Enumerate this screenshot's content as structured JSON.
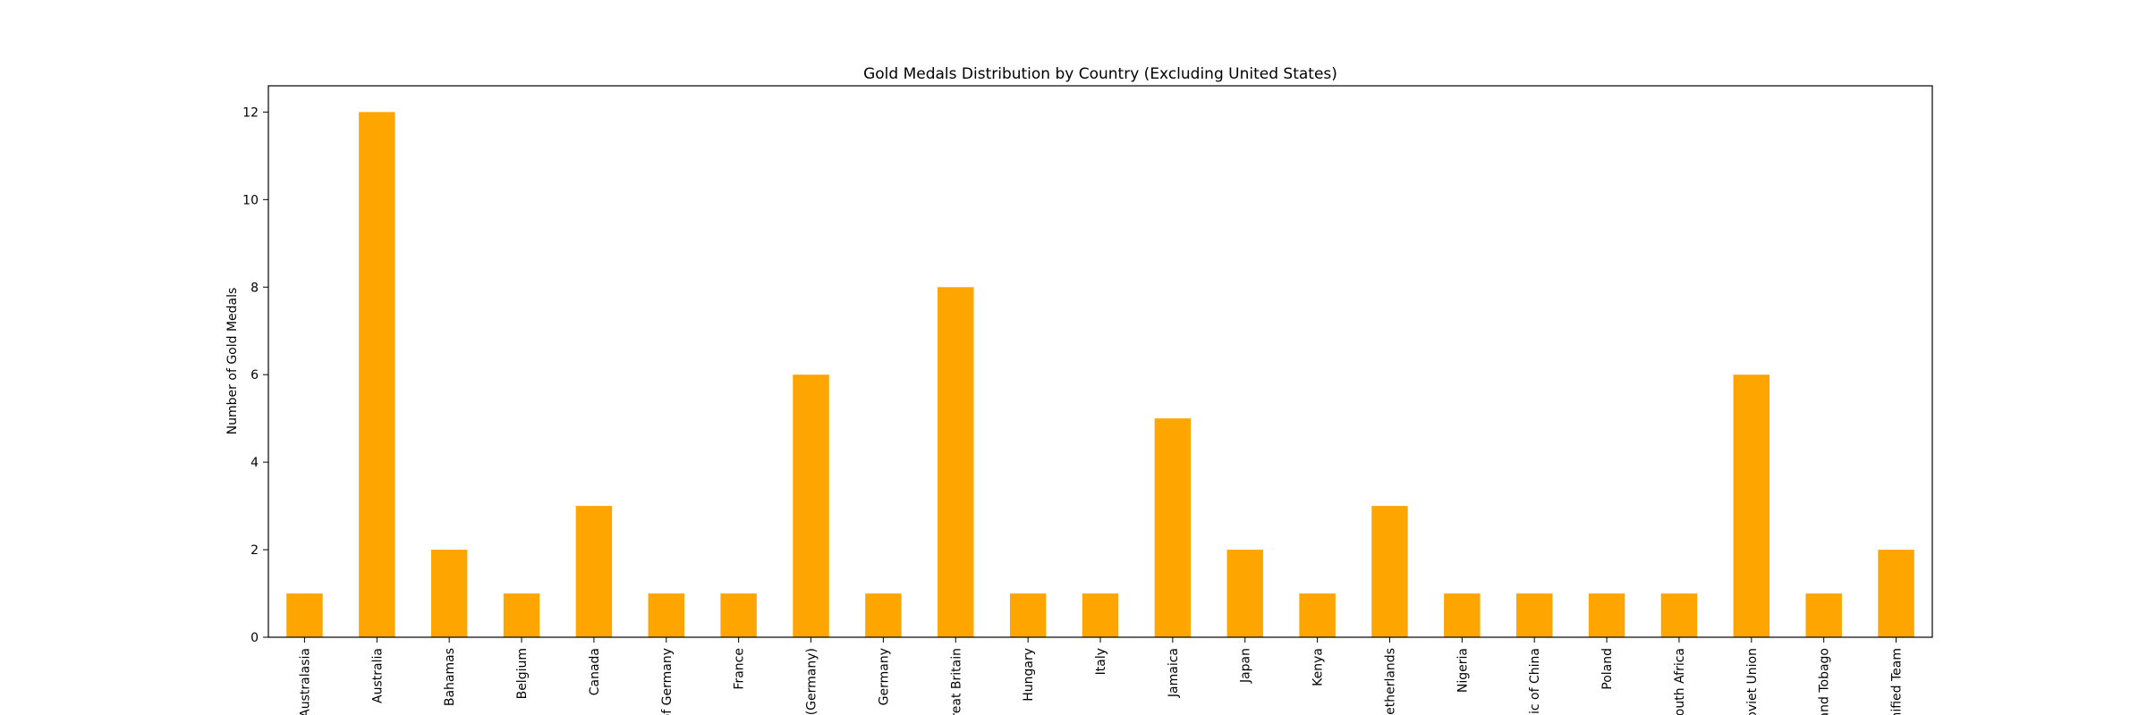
{
  "chart_data": {
    "type": "bar",
    "title": "Gold Medals Distribution by Country (Excluding United States)",
    "xlabel": "",
    "ylabel": "Number of Gold Medals",
    "categories": [
      "Australasia",
      "Australia",
      "Bahamas",
      "Belgium",
      "Canada",
      "of Germany",
      "France",
      "(Germany)",
      "Germany",
      "reat Britain",
      "Hungary",
      "Italy",
      "Jamaica",
      "Japan",
      "Kenya",
      "letherlands",
      "Nigeria",
      "lic of China",
      "Poland",
      "outh Africa",
      "oviet Union",
      "and Tobago",
      "nified Team"
    ],
    "values": [
      1,
      12,
      2,
      1,
      3,
      1,
      1,
      6,
      1,
      8,
      1,
      1,
      5,
      2,
      1,
      3,
      1,
      1,
      1,
      1,
      6,
      1,
      2
    ],
    "ylim": [
      0,
      12.6
    ],
    "yticks": [
      0,
      2,
      4,
      6,
      8,
      10,
      12
    ],
    "bar_color": "#ffa500",
    "grid": false,
    "legend": "none"
  }
}
